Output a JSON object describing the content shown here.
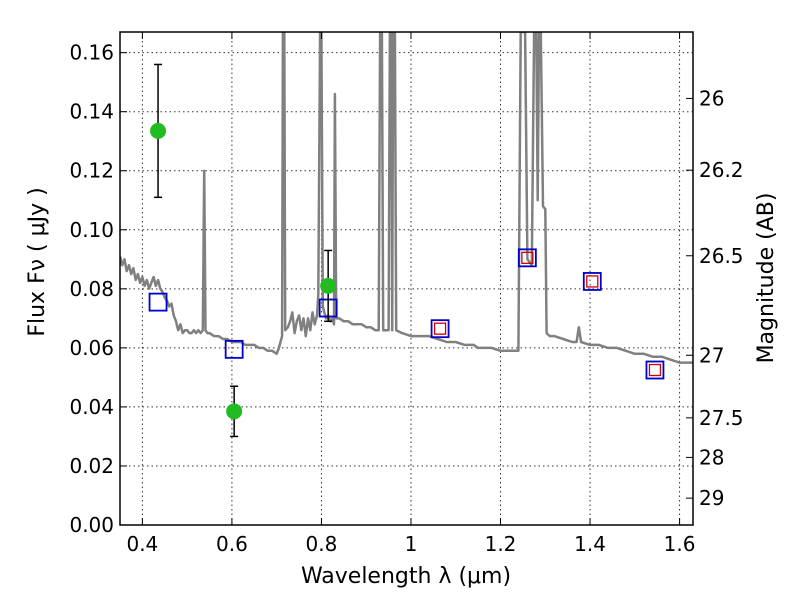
{
  "chart_data": {
    "type": "scatter",
    "title": "",
    "xlabel": "Wavelength  λ (μm)",
    "ylabel": "Flux  Fν  ( μJy )",
    "ylabel_right": "Magnitude (AB)",
    "xlim": [
      0.35,
      1.63
    ],
    "ylim": [
      0.0,
      0.167
    ],
    "grid": true,
    "x_ticks": [
      0.4,
      0.6,
      0.8,
      1.0,
      1.2,
      1.4,
      1.6
    ],
    "x_tick_labels": [
      "0.4",
      "0.6",
      "0.8",
      "1",
      "1.2",
      "1.4",
      "1.6"
    ],
    "y_ticks": [
      0.0,
      0.02,
      0.04,
      0.06,
      0.08,
      0.1,
      0.12,
      0.14,
      0.16
    ],
    "y_tick_labels": [
      "0.00",
      "0.02",
      "0.04",
      "0.06",
      "0.08",
      "0.10",
      "0.12",
      "0.14",
      "0.16"
    ],
    "right_ticks": [
      {
        "flux": 0.1445,
        "label": "26"
      },
      {
        "flux": 0.1202,
        "label": "26.2"
      },
      {
        "flux": 0.0912,
        "label": "26.5"
      },
      {
        "flux": 0.0575,
        "label": "27"
      },
      {
        "flux": 0.0363,
        "label": "27.5"
      },
      {
        "flux": 0.0229,
        "label": "28"
      },
      {
        "flux": 0.0091,
        "label": "29"
      }
    ],
    "colors": {
      "spectrum": "#808080",
      "observed": "#22bb22",
      "model_band": "#0000cc",
      "model_red": "#cc0000",
      "errorbar": "#000000"
    },
    "series": [
      {
        "kind": "spectrum",
        "points": [
          [
            0.35,
            0.091
          ],
          [
            0.355,
            0.088
          ],
          [
            0.36,
            0.09
          ],
          [
            0.365,
            0.086
          ],
          [
            0.37,
            0.088
          ],
          [
            0.375,
            0.085
          ],
          [
            0.38,
            0.087
          ],
          [
            0.385,
            0.083
          ],
          [
            0.39,
            0.085
          ],
          [
            0.395,
            0.082
          ],
          [
            0.4,
            0.084
          ],
          [
            0.405,
            0.081
          ],
          [
            0.41,
            0.083
          ],
          [
            0.415,
            0.08
          ],
          [
            0.42,
            0.082
          ],
          [
            0.425,
            0.084
          ],
          [
            0.43,
            0.081
          ],
          [
            0.435,
            0.083
          ],
          [
            0.44,
            0.08
          ],
          [
            0.445,
            0.079
          ],
          [
            0.45,
            0.077
          ],
          [
            0.455,
            0.076
          ],
          [
            0.46,
            0.074
          ],
          [
            0.465,
            0.075
          ],
          [
            0.47,
            0.071
          ],
          [
            0.475,
            0.069
          ],
          [
            0.48,
            0.066
          ],
          [
            0.485,
            0.068
          ],
          [
            0.49,
            0.065
          ],
          [
            0.495,
            0.066
          ],
          [
            0.5,
            0.066
          ],
          [
            0.505,
            0.065
          ],
          [
            0.51,
            0.065
          ],
          [
            0.515,
            0.066
          ],
          [
            0.52,
            0.065
          ],
          [
            0.525,
            0.066
          ],
          [
            0.53,
            0.065
          ],
          [
            0.535,
            0.066
          ],
          [
            0.538,
            0.12
          ],
          [
            0.541,
            0.066
          ],
          [
            0.545,
            0.065
          ],
          [
            0.55,
            0.065
          ],
          [
            0.56,
            0.064
          ],
          [
            0.57,
            0.064
          ],
          [
            0.58,
            0.063
          ],
          [
            0.59,
            0.063
          ],
          [
            0.6,
            0.062
          ],
          [
            0.61,
            0.062
          ],
          [
            0.62,
            0.062
          ],
          [
            0.63,
            0.061
          ],
          [
            0.64,
            0.061
          ],
          [
            0.65,
            0.061
          ],
          [
            0.66,
            0.06
          ],
          [
            0.67,
            0.06
          ],
          [
            0.68,
            0.059
          ],
          [
            0.69,
            0.059
          ],
          [
            0.7,
            0.058
          ],
          [
            0.705,
            0.06
          ],
          [
            0.712,
            0.064
          ],
          [
            0.714,
            0.167
          ],
          [
            0.717,
            0.167
          ],
          [
            0.719,
            0.066
          ],
          [
            0.725,
            0.067
          ],
          [
            0.73,
            0.069
          ],
          [
            0.735,
            0.072
          ],
          [
            0.74,
            0.065
          ],
          [
            0.745,
            0.069
          ],
          [
            0.75,
            0.071
          ],
          [
            0.755,
            0.066
          ],
          [
            0.76,
            0.07
          ],
          [
            0.765,
            0.064
          ],
          [
            0.77,
            0.07
          ],
          [
            0.775,
            0.066
          ],
          [
            0.78,
            0.072
          ],
          [
            0.785,
            0.068
          ],
          [
            0.79,
            0.071
          ],
          [
            0.793,
            0.078
          ],
          [
            0.797,
            0.167
          ],
          [
            0.8,
            0.167
          ],
          [
            0.803,
            0.074
          ],
          [
            0.81,
            0.07
          ],
          [
            0.815,
            0.071
          ],
          [
            0.82,
            0.069
          ],
          [
            0.825,
            0.07
          ],
          [
            0.828,
            0.068
          ],
          [
            0.83,
            0.146
          ],
          [
            0.833,
            0.07
          ],
          [
            0.84,
            0.07
          ],
          [
            0.85,
            0.069
          ],
          [
            0.86,
            0.069
          ],
          [
            0.87,
            0.068
          ],
          [
            0.88,
            0.068
          ],
          [
            0.89,
            0.068
          ],
          [
            0.9,
            0.067
          ],
          [
            0.91,
            0.067
          ],
          [
            0.92,
            0.066
          ],
          [
            0.928,
            0.066
          ],
          [
            0.931,
            0.167
          ],
          [
            0.935,
            0.167
          ],
          [
            0.938,
            0.066
          ],
          [
            0.945,
            0.066
          ],
          [
            0.95,
            0.066
          ],
          [
            0.953,
            0.167
          ],
          [
            0.956,
            0.167
          ],
          [
            0.958,
            0.066
          ],
          [
            0.96,
            0.167
          ],
          [
            0.964,
            0.167
          ],
          [
            0.967,
            0.066
          ],
          [
            0.98,
            0.065
          ],
          [
            1.0,
            0.064
          ],
          [
            1.02,
            0.064
          ],
          [
            1.04,
            0.064
          ],
          [
            1.06,
            0.063
          ],
          [
            1.08,
            0.062
          ],
          [
            1.1,
            0.062
          ],
          [
            1.12,
            0.061
          ],
          [
            1.14,
            0.061
          ],
          [
            1.15,
            0.06
          ],
          [
            1.16,
            0.06
          ],
          [
            1.18,
            0.06
          ],
          [
            1.2,
            0.059
          ],
          [
            1.22,
            0.059
          ],
          [
            1.24,
            0.059
          ],
          [
            1.245,
            0.167
          ],
          [
            1.255,
            0.167
          ],
          [
            1.26,
            0.09
          ],
          [
            1.27,
            0.088
          ],
          [
            1.275,
            0.167
          ],
          [
            1.28,
            0.167
          ],
          [
            1.283,
            0.11
          ],
          [
            1.286,
            0.167
          ],
          [
            1.29,
            0.167
          ],
          [
            1.295,
            0.108
          ],
          [
            1.3,
            0.107
          ],
          [
            1.303,
            0.065
          ],
          [
            1.31,
            0.064
          ],
          [
            1.32,
            0.064
          ],
          [
            1.34,
            0.063
          ],
          [
            1.36,
            0.062
          ],
          [
            1.37,
            0.062
          ],
          [
            1.375,
            0.067
          ],
          [
            1.38,
            0.062
          ],
          [
            1.4,
            0.061
          ],
          [
            1.42,
            0.061
          ],
          [
            1.44,
            0.06
          ],
          [
            1.46,
            0.06
          ],
          [
            1.48,
            0.059
          ],
          [
            1.5,
            0.058
          ],
          [
            1.52,
            0.058
          ],
          [
            1.54,
            0.057
          ],
          [
            1.56,
            0.057
          ],
          [
            1.58,
            0.056
          ],
          [
            1.6,
            0.055
          ],
          [
            1.63,
            0.055
          ]
        ]
      },
      {
        "kind": "observed",
        "points": [
          {
            "x": 0.435,
            "y": 0.1335,
            "yerr": 0.0225
          },
          {
            "x": 0.605,
            "y": 0.0385,
            "yerr": 0.0085
          },
          {
            "x": 0.815,
            "y": 0.081,
            "yerr": 0.012
          }
        ]
      },
      {
        "kind": "model_band",
        "points": [
          {
            "x": 0.435,
            "y": 0.0755
          },
          {
            "x": 0.605,
            "y": 0.0595
          },
          {
            "x": 0.815,
            "y": 0.0735
          },
          {
            "x": 1.065,
            "y": 0.0665
          },
          {
            "x": 1.26,
            "y": 0.0905
          },
          {
            "x": 1.405,
            "y": 0.0825
          },
          {
            "x": 1.545,
            "y": 0.0525
          }
        ]
      },
      {
        "kind": "model_red",
        "points": [
          {
            "x": 1.065,
            "y": 0.0665
          },
          {
            "x": 1.26,
            "y": 0.0905
          },
          {
            "x": 1.405,
            "y": 0.0825
          },
          {
            "x": 1.545,
            "y": 0.0525
          }
        ]
      }
    ]
  }
}
